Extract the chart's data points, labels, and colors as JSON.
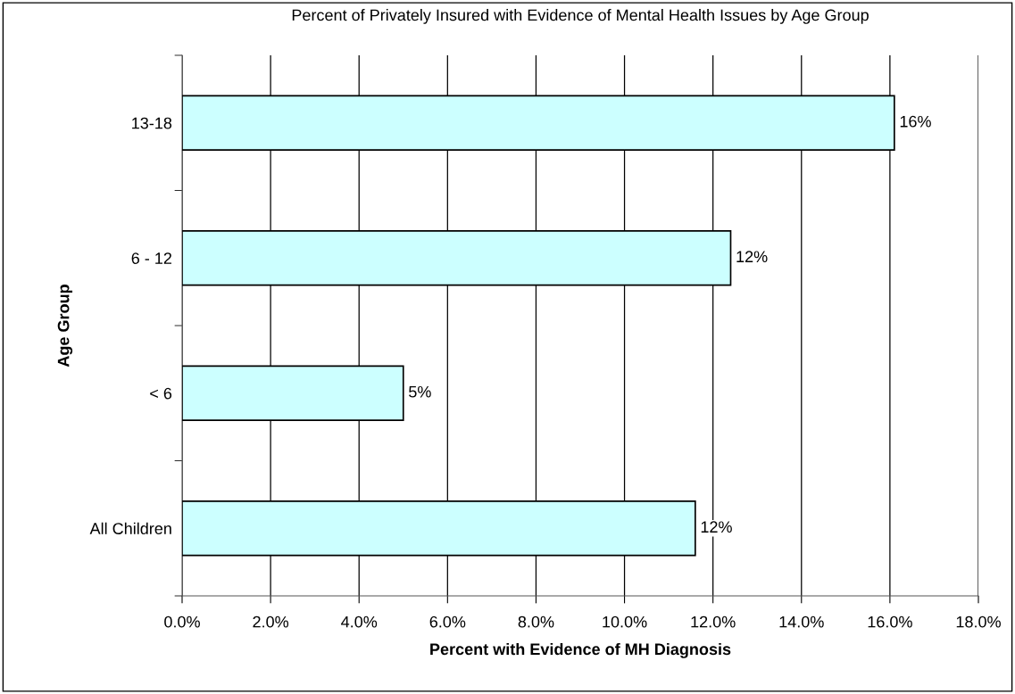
{
  "chart_data": {
    "type": "bar",
    "orientation": "horizontal",
    "title": "Percent of Privately Insured with Evidence of Mental Health Issues by Age Group",
    "xlabel": "Percent with Evidence of MH Diagnosis",
    "ylabel": "Age Group",
    "categories": [
      "13-18",
      "6 - 12",
      "< 6",
      "All Children"
    ],
    "values": [
      16.1,
      12.4,
      5.0,
      11.6
    ],
    "value_labels": [
      "16%",
      "12%",
      "5%",
      "12%"
    ],
    "color": "#ccffff",
    "xlim": [
      0,
      18
    ],
    "xticks": [
      {
        "value": 0,
        "label": "0.0%"
      },
      {
        "value": 2,
        "label": "2.0%"
      },
      {
        "value": 4,
        "label": "4.0%"
      },
      {
        "value": 6,
        "label": "6.0%"
      },
      {
        "value": 8,
        "label": "8.0%"
      },
      {
        "value": 10,
        "label": "10.0%"
      },
      {
        "value": 12,
        "label": "12.0%"
      },
      {
        "value": 14,
        "label": "14.0%"
      },
      {
        "value": 16,
        "label": "16.0%"
      },
      {
        "value": 18,
        "label": "18.0%"
      }
    ],
    "grid": "x"
  }
}
